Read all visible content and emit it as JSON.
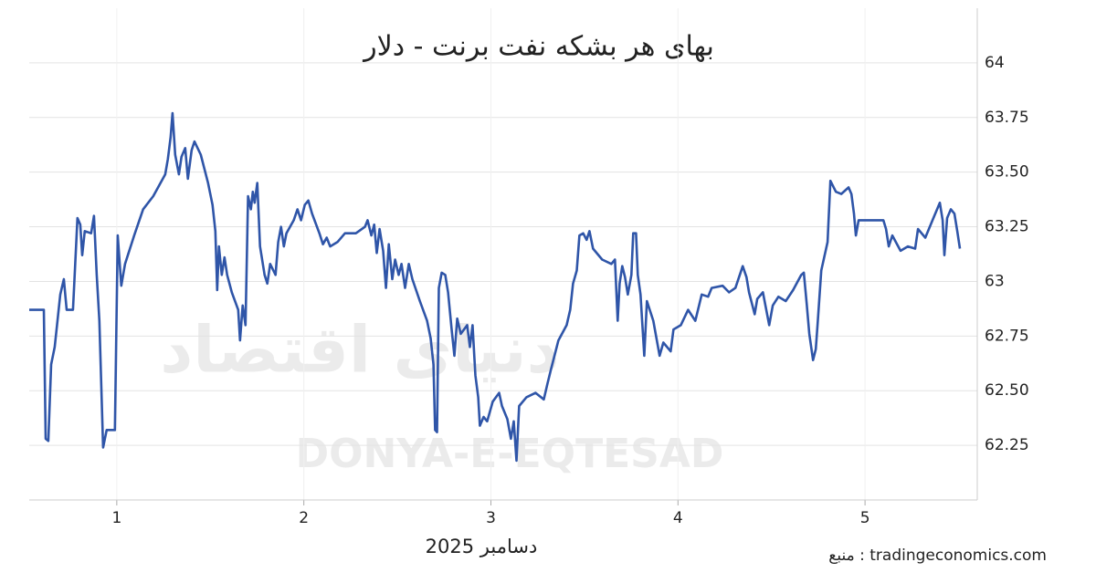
{
  "chart_data": {
    "type": "line",
    "title": "بهای هر بشکه نفت برنت - دلار",
    "xlabel": "دسامبر 2025",
    "source": "منبع : tradingeconomics.com",
    "watermark": "DONYA-E-EQTESAD",
    "watermark_logo": "دنیای اقتصاد",
    "color": "#2f55a8",
    "grid": true,
    "xlim": [
      0.532,
      5.6
    ],
    "ylim": [
      62.0,
      64.25
    ],
    "xticks": [
      1,
      2,
      3,
      4,
      5
    ],
    "yticks": [
      62.25,
      {
        "value": 62.5,
        "label": "62.50"
      },
      62.75,
      63,
      63.25,
      {
        "value": 63.5,
        "label": "63.50"
      },
      63.75,
      64
    ],
    "x": [
      0.532,
      0.61,
      0.62,
      0.634,
      0.649,
      0.668,
      0.698,
      0.717,
      0.732,
      0.766,
      0.79,
      0.805,
      0.815,
      0.829,
      0.863,
      0.878,
      0.893,
      0.907,
      0.927,
      0.946,
      0.99,
      1.005,
      1.024,
      1.044,
      1.093,
      1.141,
      1.195,
      1.259,
      1.273,
      1.288,
      1.298,
      1.312,
      1.332,
      1.346,
      1.366,
      1.38,
      1.4,
      1.415,
      1.449,
      1.488,
      1.512,
      1.527,
      1.537,
      1.546,
      1.561,
      1.576,
      1.59,
      1.615,
      1.649,
      1.659,
      1.673,
      1.688,
      1.702,
      1.717,
      1.727,
      1.737,
      1.751,
      1.766,
      1.79,
      1.805,
      1.82,
      1.849,
      1.863,
      1.878,
      1.893,
      1.907,
      1.946,
      1.966,
      1.985,
      2.005,
      2.024,
      2.044,
      2.083,
      2.102,
      2.122,
      2.141,
      2.18,
      2.22,
      2.278,
      2.327,
      2.341,
      2.361,
      2.376,
      2.39,
      2.405,
      2.424,
      2.439,
      2.454,
      2.473,
      2.488,
      2.507,
      2.522,
      2.541,
      2.561,
      2.58,
      2.62,
      2.659,
      2.678,
      2.693,
      2.702,
      2.712,
      2.722,
      2.737,
      2.756,
      2.771,
      2.79,
      2.805,
      2.82,
      2.839,
      2.873,
      2.888,
      2.902,
      2.917,
      2.932,
      2.941,
      2.961,
      2.98,
      3.01,
      3.044,
      3.059,
      3.088,
      3.107,
      3.122,
      3.137,
      3.151,
      3.19,
      3.239,
      3.283,
      3.302,
      3.322,
      3.361,
      3.405,
      3.424,
      3.439,
      3.459,
      3.473,
      3.493,
      3.512,
      3.527,
      3.546,
      3.595,
      3.644,
      3.663,
      3.678,
      3.688,
      3.702,
      3.717,
      3.732,
      3.751,
      3.761,
      3.776,
      3.785,
      3.8,
      3.82,
      3.834,
      3.868,
      3.902,
      3.922,
      3.961,
      3.976,
      4.015,
      4.054,
      4.093,
      4.127,
      4.161,
      4.18,
      4.239,
      4.273,
      4.307,
      4.346,
      4.366,
      4.38,
      4.41,
      4.424,
      4.454,
      4.488,
      4.507,
      4.537,
      4.576,
      4.615,
      4.659,
      4.673,
      4.688,
      4.702,
      4.722,
      4.737,
      4.746,
      4.766,
      4.8,
      4.815,
      4.844,
      4.873,
      4.912,
      4.927,
      4.941,
      4.951,
      4.966,
      5.01,
      5.059,
      5.098,
      5.112,
      5.127,
      5.146,
      5.19,
      5.229,
      5.268,
      5.283,
      5.322,
      5.361,
      5.4,
      5.415,
      5.424,
      5.439,
      5.459,
      5.478,
      5.493,
      5.507
    ],
    "values": [
      62.87,
      62.87,
      62.28,
      62.27,
      62.62,
      62.7,
      62.94,
      63.01,
      62.87,
      62.87,
      63.29,
      63.26,
      63.12,
      63.23,
      63.22,
      63.3,
      63.03,
      62.82,
      62.24,
      62.32,
      62.32,
      63.21,
      62.98,
      63.08,
      63.21,
      63.33,
      63.39,
      63.49,
      63.56,
      63.66,
      63.77,
      63.58,
      63.49,
      63.57,
      63.61,
      63.47,
      63.6,
      63.64,
      63.58,
      63.45,
      63.35,
      63.23,
      62.96,
      63.16,
      63.03,
      63.11,
      63.03,
      62.95,
      62.87,
      62.73,
      62.89,
      62.8,
      63.39,
      63.33,
      63.41,
      63.36,
      63.45,
      63.16,
      63.03,
      62.99,
      63.08,
      63.03,
      63.18,
      63.25,
      63.16,
      63.22,
      63.28,
      63.33,
      63.28,
      63.35,
      63.37,
      63.31,
      63.22,
      63.17,
      63.2,
      63.16,
      63.18,
      63.22,
      63.22,
      63.25,
      63.28,
      63.21,
      63.26,
      63.13,
      63.24,
      63.14,
      62.97,
      63.17,
      63.01,
      63.1,
      63.03,
      63.08,
      62.97,
      63.08,
      63.01,
      62.91,
      62.82,
      62.74,
      62.62,
      62.32,
      62.31,
      62.97,
      63.04,
      63.03,
      62.95,
      62.78,
      62.66,
      62.83,
      62.76,
      62.8,
      62.7,
      62.8,
      62.57,
      62.47,
      62.34,
      62.38,
      62.36,
      62.45,
      62.49,
      62.43,
      62.37,
      62.28,
      62.36,
      62.18,
      62.43,
      62.47,
      62.49,
      62.46,
      62.53,
      62.6,
      62.73,
      62.8,
      62.87,
      62.99,
      63.05,
      63.21,
      63.22,
      63.19,
      63.23,
      63.15,
      63.1,
      63.08,
      63.1,
      62.82,
      62.99,
      63.07,
      63.02,
      62.94,
      63.03,
      63.22,
      63.22,
      63.03,
      62.94,
      62.66,
      62.91,
      62.82,
      62.66,
      62.72,
      62.68,
      62.78,
      62.8,
      62.87,
      62.82,
      62.94,
      62.93,
      62.97,
      62.98,
      62.95,
      62.97,
      63.07,
      63.02,
      62.95,
      62.85,
      62.92,
      62.95,
      62.8,
      62.89,
      62.93,
      62.91,
      62.96,
      63.03,
      63.04,
      62.9,
      62.76,
      62.64,
      62.69,
      62.8,
      63.05,
      63.18,
      63.46,
      63.41,
      63.4,
      63.43,
      63.4,
      63.31,
      63.21,
      63.28,
      63.28,
      63.28,
      63.28,
      63.24,
      63.16,
      63.21,
      63.14,
      63.16,
      63.15,
      63.24,
      63.2,
      63.28,
      63.36,
      63.28,
      63.12,
      63.29,
      63.33,
      63.31,
      63.23,
      63.15
    ]
  }
}
